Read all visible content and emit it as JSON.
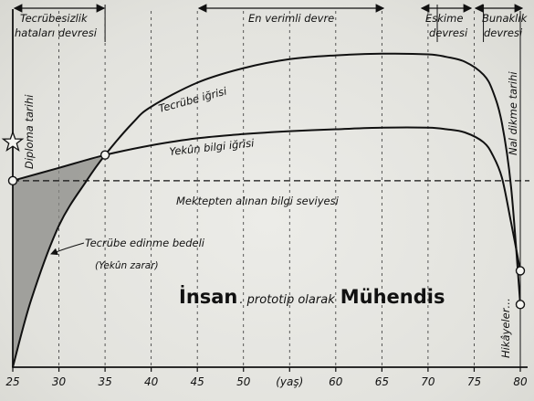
{
  "chart_data": {
    "type": "line",
    "xlim": [
      25,
      80
    ],
    "ylim": [
      0,
      100
    ],
    "x_ticks": [
      "25",
      "30",
      "35",
      "40",
      "45",
      "50",
      "(yaş)",
      "60",
      "65",
      "70",
      "75",
      "80"
    ],
    "series": [
      {
        "name": "Tecrübe iğrisi",
        "x": [
          25,
          27,
          30,
          33,
          35,
          38,
          40,
          45,
          50,
          55,
          60,
          65,
          70,
          72,
          74,
          76,
          77,
          78,
          79,
          80
        ],
        "y": [
          0,
          21,
          44,
          58,
          66,
          76,
          81,
          88.5,
          93,
          95.8,
          97,
          97.5,
          97.3,
          96.5,
          95,
          91,
          86,
          76,
          56,
          19.5
        ]
      },
      {
        "name": "Yekûn bilgi iğrisi",
        "x": [
          25,
          30,
          35,
          40,
          45,
          50,
          55,
          60,
          65,
          70,
          72,
          74,
          76,
          77,
          78,
          79,
          80
        ],
        "y": [
          58,
          62,
          66,
          69,
          71.2,
          72.5,
          73.4,
          74,
          74.5,
          74.5,
          74,
          73,
          70,
          66,
          59,
          45,
          30
        ]
      }
    ],
    "reference_line": {
      "label": "Mektepten alınan bilgi seviyesi",
      "y": 58
    },
    "shaded_region": {
      "label": [
        "Tecrübe edinme bedeli",
        "(Yekûn zarar)"
      ],
      "x": [
        25,
        35
      ]
    },
    "markers": [
      {
        "x": 25,
        "y": 58,
        "shape": "circle"
      },
      {
        "x": 35,
        "y": 66,
        "shape": "circle"
      },
      {
        "x": 80,
        "y": 30,
        "shape": "circle"
      },
      {
        "x": 80,
        "y": 19.5,
        "shape": "circle"
      },
      {
        "x": 25,
        "y": 70,
        "shape": "star"
      }
    ],
    "period_labels": [
      {
        "lines": [
          "Tecrübesizlik",
          "hataları devresi"
        ]
      },
      {
        "lines": [
          "En verimli devre"
        ]
      },
      {
        "lines": [
          "Eskime",
          "devresi"
        ]
      },
      {
        "lines": [
          "Bunaklık",
          "devresi"
        ]
      }
    ],
    "side_labels": {
      "diploma": "Diploma tarihi",
      "nal": "Nal dikme tarihi",
      "hikaye": "Hikâyeler…"
    },
    "caption": {
      "part1": "İnsan",
      "part2": ". prototip olarak",
      "part3": "Mühendis"
    },
    "grid": true
  }
}
